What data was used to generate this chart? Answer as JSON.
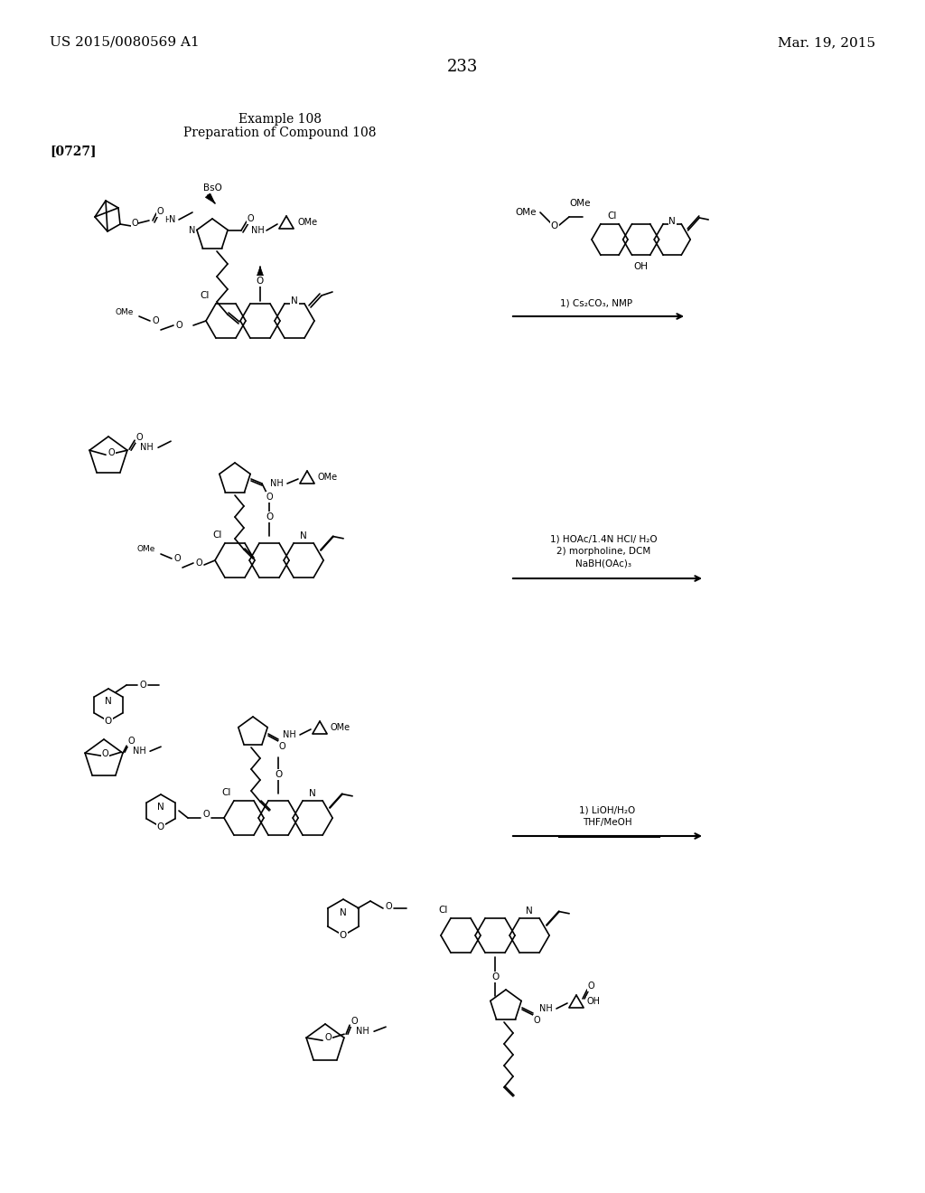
{
  "page_number": "233",
  "header_left": "US 2015/0080569 A1",
  "header_right": "Mar. 19, 2015",
  "title_line1": "Example 108",
  "title_line2": "Preparation of Compound 108",
  "paragraph_label": "[0727]",
  "background_color": "#ffffff",
  "text_color": "#000000",
  "figure_description": "Chemical reaction scheme showing preparation of Compound 108 with multiple steps",
  "reaction_steps": [
    "1) Cs₂CO₃, NMP",
    "1) HOAc/1.4N HCl/ H₂O\n2) morpholine, DCM\nNaBH(OAc)₃",
    "1) LiOH/H₂O\nTHF/MeOH"
  ],
  "reagent_labels": [
    "BsO",
    "OMe",
    "Cl",
    "OH",
    "OMe",
    "Cl",
    "OMe",
    "Cl",
    "OH",
    "Cl",
    "OH"
  ],
  "font_size_header": 11,
  "font_size_page_num": 13,
  "font_size_title": 10,
  "font_size_label": 10
}
